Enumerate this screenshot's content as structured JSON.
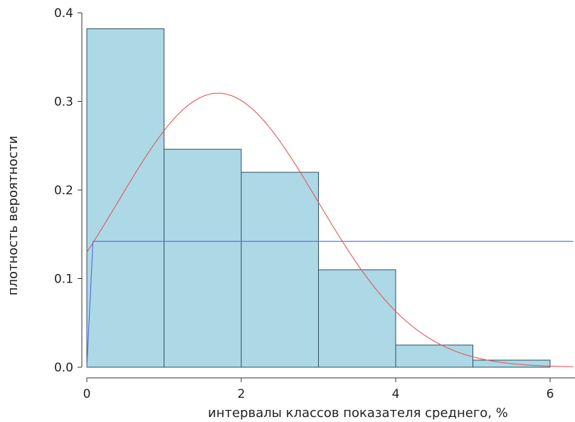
{
  "chart_data": {
    "type": "bar",
    "title": "",
    "xlabel": "интервалы классов показателя среднего, %",
    "ylabel": "плотность вероятности",
    "xlim": [
      0,
      6.3
    ],
    "ylim": [
      0,
      0.4
    ],
    "xticks": [
      0,
      2,
      4,
      6
    ],
    "yticks": [
      0.0,
      0.1,
      0.2,
      0.3,
      0.4
    ],
    "ytick_labels": [
      "0.0",
      "0.1",
      "0.2",
      "0.3",
      "0.4"
    ],
    "grid": false,
    "bins": [
      {
        "from": 0,
        "to": 1,
        "value": 0.382
      },
      {
        "from": 1,
        "to": 2,
        "value": 0.246
      },
      {
        "from": 2,
        "to": 3,
        "value": 0.22
      },
      {
        "from": 3,
        "to": 4,
        "value": 0.11
      },
      {
        "from": 4,
        "to": 5,
        "value": 0.025
      },
      {
        "from": 5,
        "to": 6,
        "value": 0.008
      }
    ],
    "series": [
      {
        "type": "line",
        "color": "#e05a5a",
        "kind": "normal-density",
        "mean": 1.7,
        "sd": 1.29
      },
      {
        "type": "line",
        "color": "#4a6ee0",
        "x": [
          0,
          0.08,
          6.3
        ],
        "y": [
          0,
          0.142,
          0.142
        ]
      }
    ],
    "colors": {
      "bar_fill": "#add8e6",
      "bar_stroke": "#2f4f5f",
      "axis": "#333333"
    }
  }
}
